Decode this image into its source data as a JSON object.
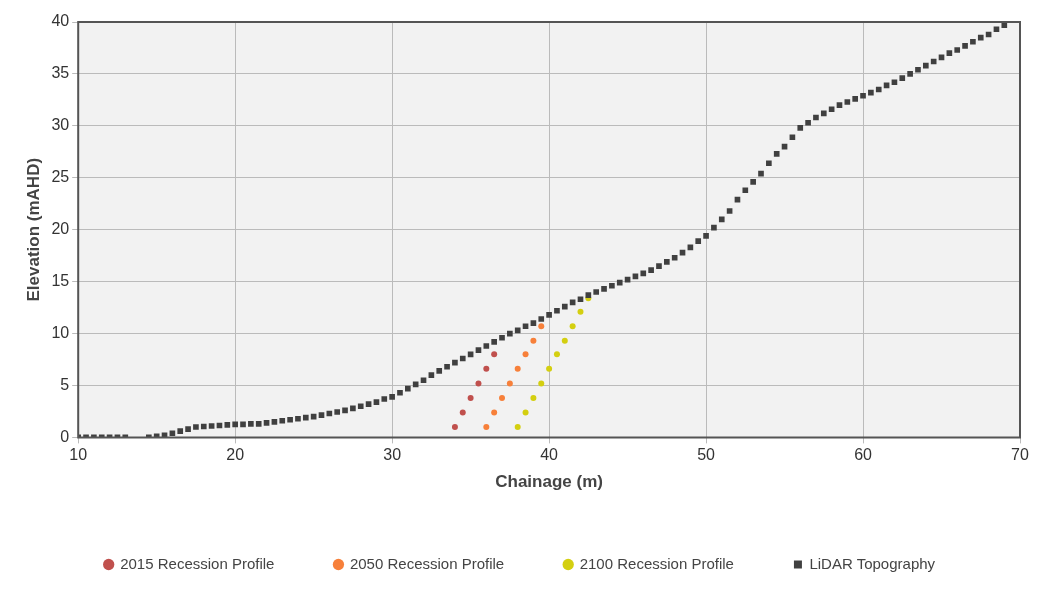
{
  "chart_data": {
    "type": "scatter",
    "xlabel": "Chainage (m)",
    "ylabel": "Elevation (mAHD)",
    "xlim": [
      10,
      70
    ],
    "xticks": [
      10,
      20,
      30,
      40,
      50,
      60,
      70
    ],
    "ylim": [
      0,
      40
    ],
    "yticks": [
      0,
      5,
      10,
      15,
      20,
      25,
      30,
      35,
      40
    ],
    "grid": true,
    "legend": "bottom",
    "series": [
      {
        "name": "2015 Recession Profile",
        "color": "#c0504d",
        "marker": "circle",
        "x": [
          34,
          34.5,
          35,
          35.5,
          36,
          36.5
        ],
        "values": [
          1,
          2.4,
          3.8,
          5.2,
          6.6,
          8.0
        ]
      },
      {
        "name": "2050 Recession Profile",
        "color": "#f7803a",
        "marker": "circle",
        "x": [
          36,
          36.5,
          37,
          37.5,
          38,
          38.5,
          39,
          39.5
        ],
        "values": [
          1,
          2.4,
          3.8,
          5.2,
          6.6,
          8.0,
          9.3,
          10.7
        ]
      },
      {
        "name": "2100 Recession Profile",
        "color": "#d4cf10",
        "marker": "circle",
        "x": [
          38,
          38.5,
          39,
          39.5,
          40,
          40.5,
          41,
          41.5,
          42,
          42.5
        ],
        "values": [
          1,
          2.4,
          3.8,
          5.2,
          6.6,
          8.0,
          9.3,
          10.7,
          12.1,
          13.4
        ]
      },
      {
        "name": "LiDAR Topography",
        "color": "#404040",
        "marker": "square",
        "x": [
          10,
          10.5,
          11,
          11.5,
          12,
          12.5,
          13,
          14.5,
          15,
          15.5,
          16,
          16.5,
          17,
          17.5,
          18,
          18.5,
          19,
          19.5,
          20,
          20.5,
          21,
          21.5,
          22,
          22.5,
          23,
          23.5,
          24,
          24.5,
          25,
          25.5,
          26,
          26.5,
          27,
          27.5,
          28,
          28.5,
          29,
          29.5,
          30,
          30.5,
          31,
          31.5,
          32,
          32.5,
          33,
          33.5,
          34,
          34.5,
          35,
          35.5,
          36,
          36.5,
          37,
          37.5,
          38,
          38.5,
          39,
          39.5,
          40,
          40.5,
          41,
          41.5,
          42,
          42.5,
          43,
          43.5,
          44,
          44.5,
          45,
          45.5,
          46,
          46.5,
          47,
          47.5,
          48,
          48.5,
          49,
          49.5,
          50,
          50.5,
          51,
          51.5,
          52,
          52.5,
          53,
          53.5,
          54,
          54.5,
          55,
          55.5,
          56,
          56.5,
          57,
          57.5,
          58,
          58.5,
          59,
          59.5,
          60,
          60.5,
          61,
          61.5,
          62,
          62.5,
          63,
          63.5,
          64,
          64.5,
          65,
          65.5,
          66,
          66.5,
          67,
          67.5,
          68,
          68.5,
          69
        ],
        "values": [
          0,
          0,
          0,
          0,
          0,
          0,
          0,
          0,
          0.1,
          0.2,
          0.4,
          0.6,
          0.8,
          1.0,
          1.05,
          1.1,
          1.15,
          1.2,
          1.25,
          1.25,
          1.3,
          1.3,
          1.4,
          1.5,
          1.6,
          1.7,
          1.8,
          1.9,
          2.0,
          2.15,
          2.3,
          2.45,
          2.6,
          2.8,
          3.0,
          3.2,
          3.4,
          3.7,
          3.9,
          4.3,
          4.7,
          5.1,
          5.5,
          6.0,
          6.4,
          6.8,
          7.2,
          7.6,
          8.0,
          8.4,
          8.8,
          9.2,
          9.6,
          10.0,
          10.3,
          10.7,
          11.0,
          11.4,
          11.8,
          12.2,
          12.6,
          13.0,
          13.3,
          13.7,
          14.0,
          14.3,
          14.6,
          14.9,
          15.2,
          15.5,
          15.8,
          16.1,
          16.5,
          16.9,
          17.3,
          17.8,
          18.3,
          18.9,
          19.4,
          20.2,
          21.0,
          21.8,
          22.9,
          23.8,
          24.6,
          25.4,
          26.4,
          27.3,
          28.0,
          28.9,
          29.8,
          30.3,
          30.8,
          31.2,
          31.6,
          32.0,
          32.3,
          32.6,
          32.9,
          33.2,
          33.5,
          33.9,
          34.2,
          34.6,
          35.0,
          35.4,
          35.8,
          36.2,
          36.6,
          37.0,
          37.3,
          37.7,
          38.1,
          38.5,
          38.8,
          39.3,
          39.7
        ]
      }
    ]
  }
}
